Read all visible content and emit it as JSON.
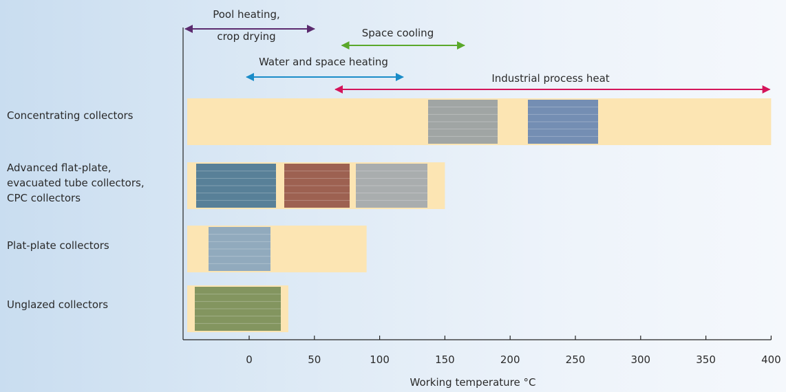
{
  "chart_data": {
    "type": "bar",
    "orientation": "horizontal-range",
    "xlabel": "Working temperature °C",
    "xlim": [
      -50,
      400
    ],
    "x_ticks": [
      0,
      50,
      100,
      150,
      200,
      250,
      300,
      350,
      400
    ],
    "grid": false,
    "bar_color": "#fce5b3",
    "categories": [
      {
        "label": [
          "Concentrating collectors"
        ],
        "range": [
          -50,
          400
        ],
        "photo_icons": [
          "parabolic-trough-photo-icon",
          "solar-field-photo-icon"
        ]
      },
      {
        "label": [
          "Advanced flat-plate,",
          "evacuated tube collectors,",
          "CPC collectors"
        ],
        "range": [
          -50,
          150
        ],
        "photo_icons": [
          "flat-plate-panel-photo-icon",
          "evacuated-tube-photo-icon",
          "cpc-collector-photo-icon"
        ]
      },
      {
        "label": [
          "Plat-plate collectors"
        ],
        "range": [
          -50,
          90
        ],
        "photo_icons": [
          "rooftop-collector-photo-icon"
        ]
      },
      {
        "label": [
          "Unglazed collectors"
        ],
        "range": [
          -50,
          30
        ],
        "photo_icons": [
          "unglazed-collector-photo-icon"
        ]
      }
    ],
    "applications": [
      {
        "label": [
          "Pool heating,",
          "crop drying"
        ],
        "range": [
          -50,
          50
        ],
        "color": "#5b2a6e"
      },
      {
        "label": [
          "Space cooling"
        ],
        "range": [
          70,
          165
        ],
        "color": "#5aa82a"
      },
      {
        "label": [
          "Water and space heating"
        ],
        "range": [
          -3,
          118
        ],
        "color": "#1a8cc8"
      },
      {
        "label": [
          "Industrial process heat"
        ],
        "range": [
          65,
          400
        ],
        "color": "#d4145a"
      }
    ]
  }
}
